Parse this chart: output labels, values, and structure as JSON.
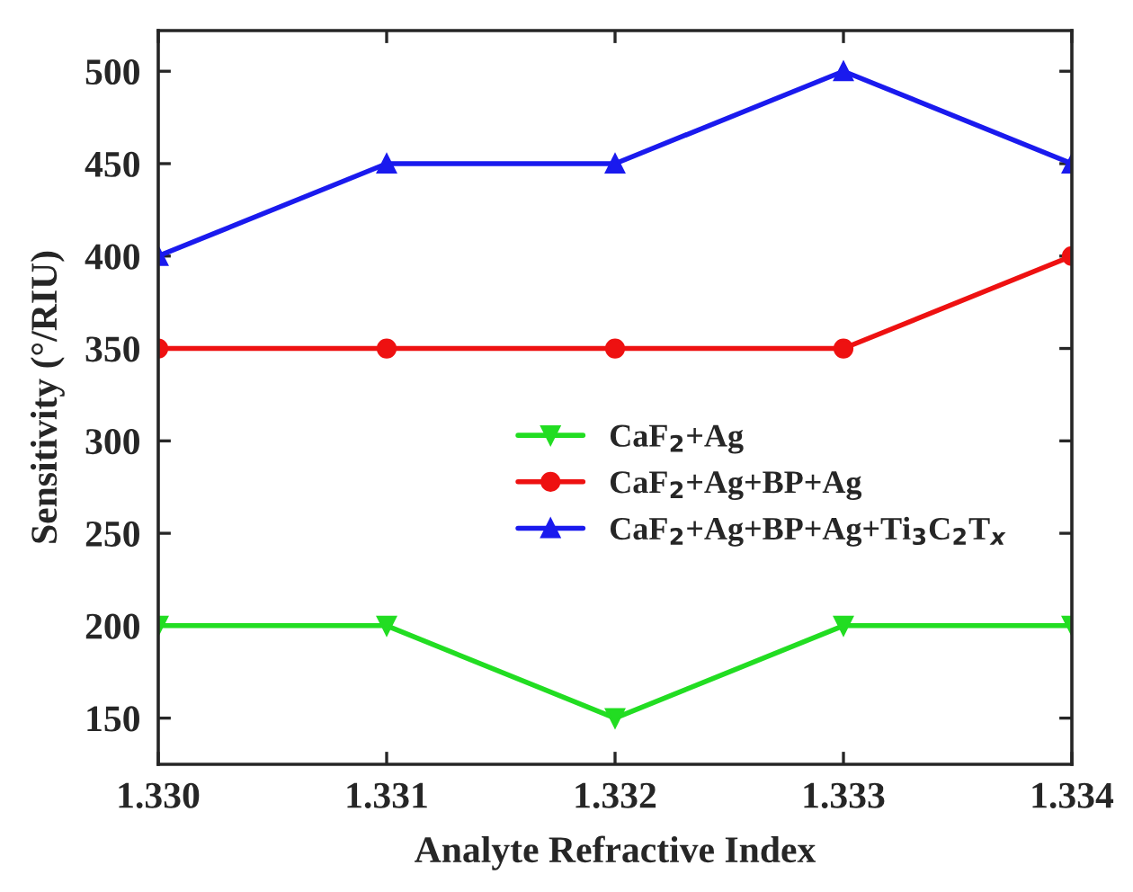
{
  "chart_data": {
    "type": "line",
    "xlabel": "Analyte Refractive Index",
    "ylabel": "Sensitivity (°/RIU)",
    "x": [
      1.33,
      1.331,
      1.332,
      1.333,
      1.334
    ],
    "series": [
      {
        "name": "CaF$_{2}$+Ag",
        "color": "#22dd22",
        "marker": "triangle_down",
        "values": [
          200,
          200,
          150,
          200,
          200
        ]
      },
      {
        "name": "CaF$_{2}$+Ag+BP+Ag",
        "color": "#ee1111",
        "marker": "circle",
        "values": [
          350,
          350,
          350,
          350,
          400
        ]
      },
      {
        "name": "CaF$_{2}$+Ag+BP+Ag+Ti$_{3}$C$_{2}$T$_{x}$",
        "color": "#1a1aee",
        "marker": "triangle",
        "values": [
          400,
          450,
          450,
          500,
          450
        ]
      }
    ],
    "xlim": [
      1.33,
      1.334
    ],
    "xticks": [
      {
        "value": 1.33,
        "label": "1.330"
      },
      {
        "value": 1.331,
        "label": "1.331"
      },
      {
        "value": 1.332,
        "label": "1.332"
      },
      {
        "value": 1.333,
        "label": "1.333"
      },
      {
        "value": 1.334,
        "label": "1.334"
      }
    ],
    "ylim": [
      125,
      522
    ],
    "yticks": [
      150,
      200,
      250,
      300,
      350,
      400,
      450,
      500
    ],
    "legend": "center right",
    "grid": false,
    "line_style": "solid"
  }
}
